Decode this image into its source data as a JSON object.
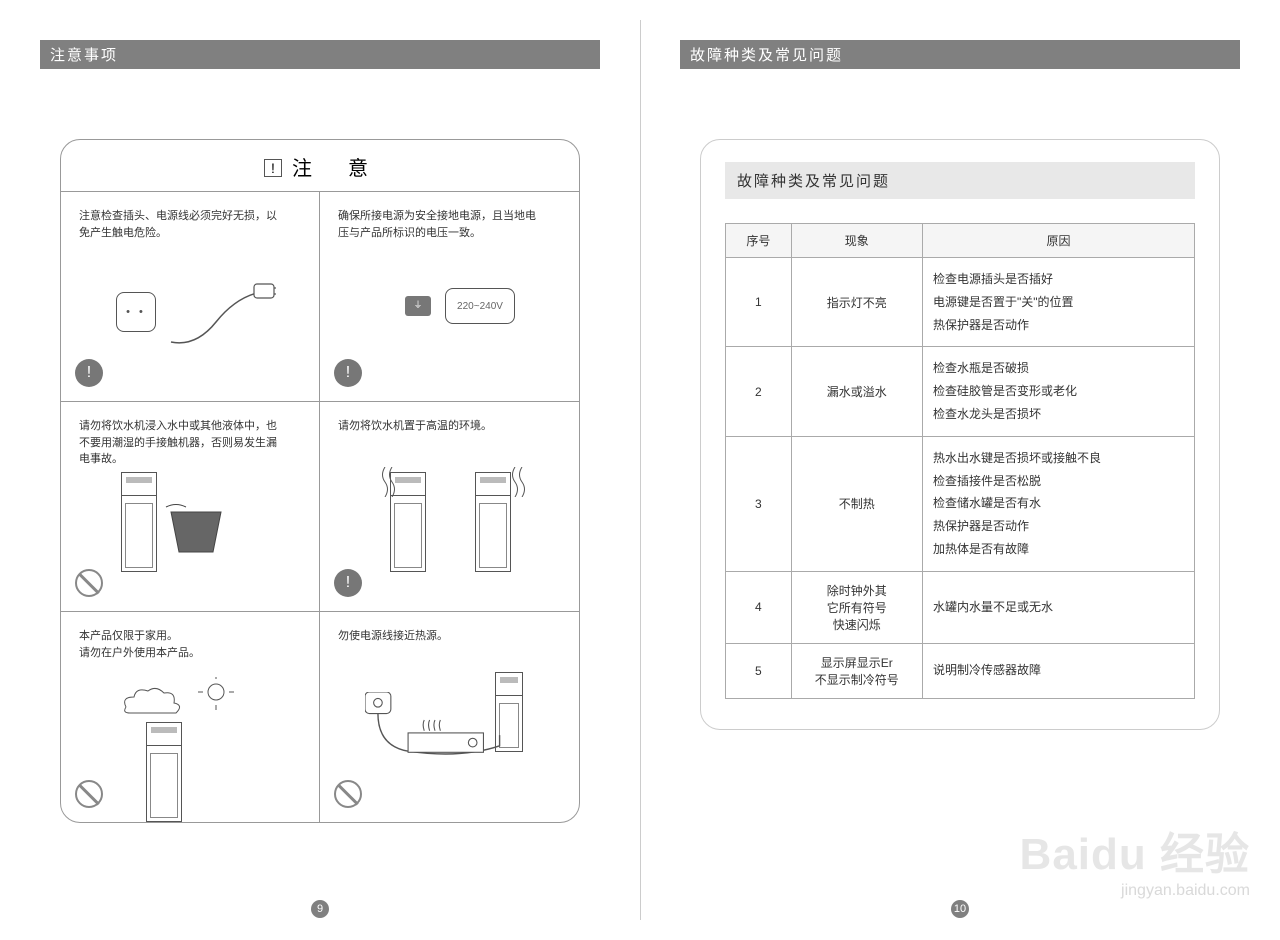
{
  "left": {
    "header": "注意事项",
    "title": "注　意",
    "warn_mark": "!",
    "page_num": "9",
    "cells": [
      {
        "text": "注意检查插头、电源线必须完好无损，以免产生触电危险。",
        "icon": "bang",
        "illus": "plug"
      },
      {
        "text": "确保所接电源为安全接地电源，且当地电压与产品所标识的电压一致。",
        "icon": "bang",
        "illus": "volt",
        "volt_label": "220~240V"
      },
      {
        "text": "请勿将饮水机浸入水中或其他液体中，也不要用潮湿的手接触机器，否则易发生漏电事故。",
        "icon": "no",
        "illus": "water"
      },
      {
        "text": "请勿将饮水机置于高温的环境。",
        "icon": "bang",
        "illus": "heat"
      },
      {
        "text": "本产品仅限于家用。\n请勿在户外使用本产品。",
        "icon": "no",
        "illus": "outdoor"
      },
      {
        "text": "勿使电源线接近热源。",
        "icon": "no",
        "illus": "stove"
      }
    ]
  },
  "right": {
    "header": "故障种类及常见问题",
    "sub_header": "故障种类及常见问题",
    "page_num": "10",
    "table": {
      "columns": [
        "序号",
        "现象",
        "原因"
      ],
      "col_widths": [
        "14%",
        "28%",
        "58%"
      ],
      "rows": [
        {
          "no": "1",
          "symptom": "指示灯不亮",
          "cause": [
            "检查电源插头是否插好",
            "电源键是否置于\"关\"的位置",
            "热保护器是否动作"
          ]
        },
        {
          "no": "2",
          "symptom": "漏水或溢水",
          "cause": [
            "检查水瓶是否破损",
            "检查硅胶管是否变形或老化",
            "检查水龙头是否损坏"
          ]
        },
        {
          "no": "3",
          "symptom": "不制热",
          "cause": [
            "热水出水键是否损坏或接触不良",
            "检查插接件是否松脱",
            "检查储水罐是否有水",
            "热保护器是否动作",
            "加热体是否有故障"
          ]
        },
        {
          "no": "4",
          "symptom": "除时钟外其\n它所有符号\n快速闪烁",
          "cause": [
            "水罐内水量不足或无水"
          ]
        },
        {
          "no": "5",
          "symptom": "显示屏显示Er\n不显示制冷符号",
          "cause": [
            "说明制冷传感器故障"
          ]
        }
      ]
    }
  },
  "watermark": {
    "main": "Baidu 经验",
    "sub": "jingyan.baidu.com"
  }
}
